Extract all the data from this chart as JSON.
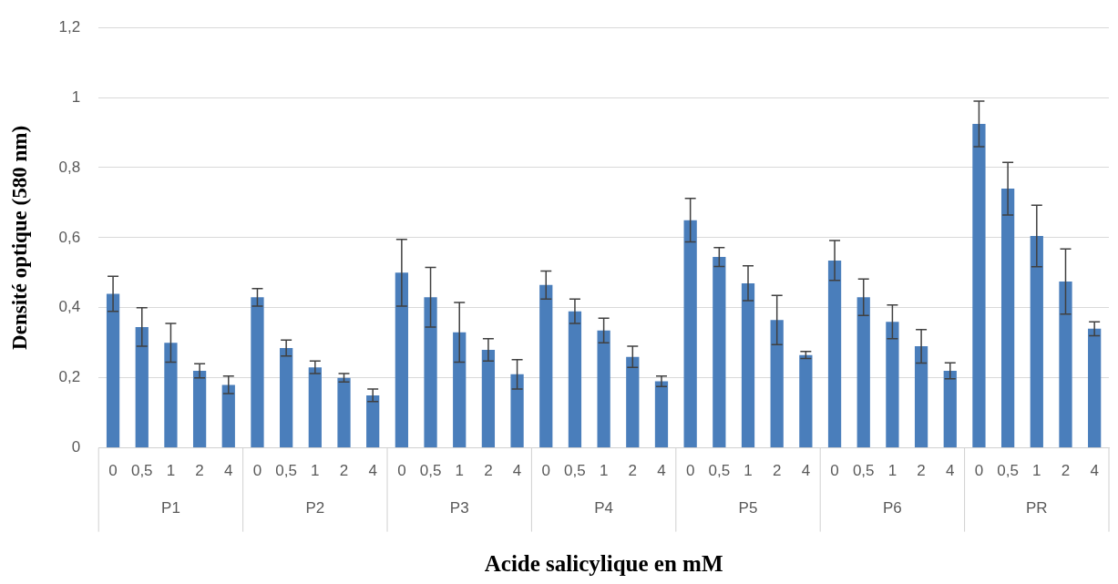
{
  "chart_data": {
    "type": "bar",
    "xlabel": "Acide salicylique en mM",
    "ylabel": "Densité optique (580 nm)",
    "categories": [
      "0",
      "0,5",
      "1",
      "2",
      "4",
      "0",
      "0,5",
      "1",
      "2",
      "4",
      "0",
      "0,5",
      "1",
      "2",
      "4",
      "0",
      "0,5",
      "1",
      "2",
      "4",
      "0",
      "0,5",
      "1",
      "2",
      "4",
      "0",
      "0,5",
      "1",
      "2",
      "4",
      "0",
      "0,5",
      "1",
      "2",
      "4"
    ],
    "values": [
      0.44,
      0.345,
      0.3,
      0.22,
      0.18,
      0.43,
      0.285,
      0.23,
      0.2,
      0.15,
      0.5,
      0.43,
      0.33,
      0.28,
      0.21,
      0.465,
      0.39,
      0.335,
      0.26,
      0.19,
      0.65,
      0.545,
      0.47,
      0.365,
      0.265,
      0.535,
      0.43,
      0.36,
      0.29,
      0.22,
      0.925,
      0.74,
      0.605,
      0.475,
      0.34
    ],
    "errors": [
      0.05,
      0.055,
      0.055,
      0.02,
      0.025,
      0.025,
      0.023,
      0.018,
      0.012,
      0.018,
      0.095,
      0.085,
      0.085,
      0.032,
      0.042,
      0.04,
      0.035,
      0.035,
      0.03,
      0.015,
      0.062,
      0.027,
      0.05,
      0.07,
      0.01,
      0.057,
      0.052,
      0.048,
      0.048,
      0.023,
      0.065,
      0.075,
      0.088,
      0.093,
      0.02
    ],
    "color": "#4a7ebb",
    "ylim": [
      0,
      1.2
    ],
    "yticks": [
      0,
      {
        "value": 0.2,
        "label": "0,2"
      },
      {
        "value": 0.4,
        "label": "0,4"
      },
      {
        "value": 0.6,
        "label": "0,6"
      },
      {
        "value": 0.8,
        "label": "0,8"
      },
      1,
      {
        "value": 1.2,
        "label": "1,2"
      }
    ],
    "grid": "y",
    "annotations": [
      "P1",
      "P2",
      "P3",
      "P4",
      "P5",
      "P6",
      "PR"
    ]
  }
}
